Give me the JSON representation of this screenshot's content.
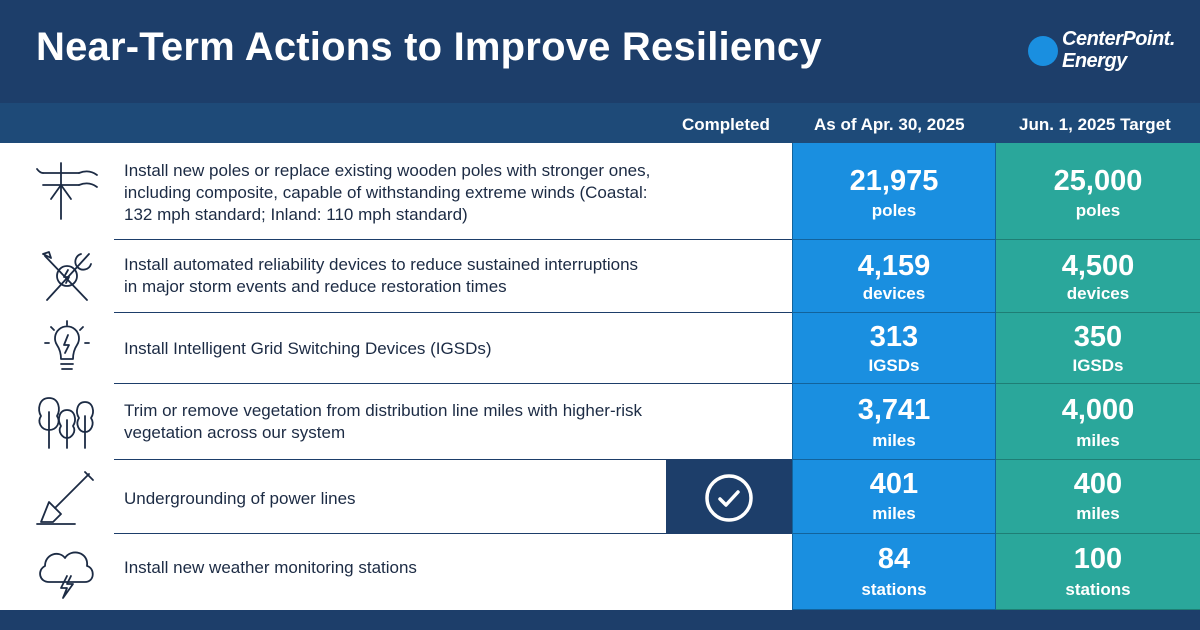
{
  "header": {
    "title": "Near-Term Actions to Improve Resiliency",
    "logo_line1": "CenterPoint.",
    "logo_line2": "Energy"
  },
  "columns": {
    "completed": "Completed",
    "as_of": "As of Apr. 30, 2025",
    "target": "Jun. 1, 2025 Target"
  },
  "rows": [
    {
      "icon": "utility-pole-icon",
      "description": "Install new poles or replace existing wooden poles with stronger ones, including composite, capable of withstanding extreme winds (Coastal: 132 mph standard; Inland: 110 mph standard)",
      "as_of_value": "21,975",
      "as_of_unit": "poles",
      "target_value": "25,000",
      "target_unit": "poles",
      "completed": false
    },
    {
      "icon": "tools-icon",
      "description": "Install automated reliability devices to reduce sustained interruptions in major storm events and reduce restoration times",
      "as_of_value": "4,159",
      "as_of_unit": "devices",
      "target_value": "4,500",
      "target_unit": "devices",
      "completed": false
    },
    {
      "icon": "lightbulb-icon",
      "description": "Install Intelligent Grid Switching Devices (IGSDs)",
      "as_of_value": "313",
      "as_of_unit": "IGSDs",
      "target_value": "350",
      "target_unit": "IGSDs",
      "completed": false
    },
    {
      "icon": "trees-icon",
      "description": "Trim or remove vegetation from distribution line miles with higher-risk vegetation across our system",
      "as_of_value": "3,741",
      "as_of_unit": "miles",
      "target_value": "4,000",
      "target_unit": "miles",
      "completed": false
    },
    {
      "icon": "shovel-icon",
      "description": "Undergrounding of power lines",
      "as_of_value": "401",
      "as_of_unit": "miles",
      "target_value": "400",
      "target_unit": "miles",
      "completed": true
    },
    {
      "icon": "storm-cloud-icon",
      "description": "Install new weather monitoring stations",
      "as_of_value": "84",
      "as_of_unit": "stations",
      "target_value": "100",
      "target_unit": "stations",
      "completed": false
    }
  ]
}
